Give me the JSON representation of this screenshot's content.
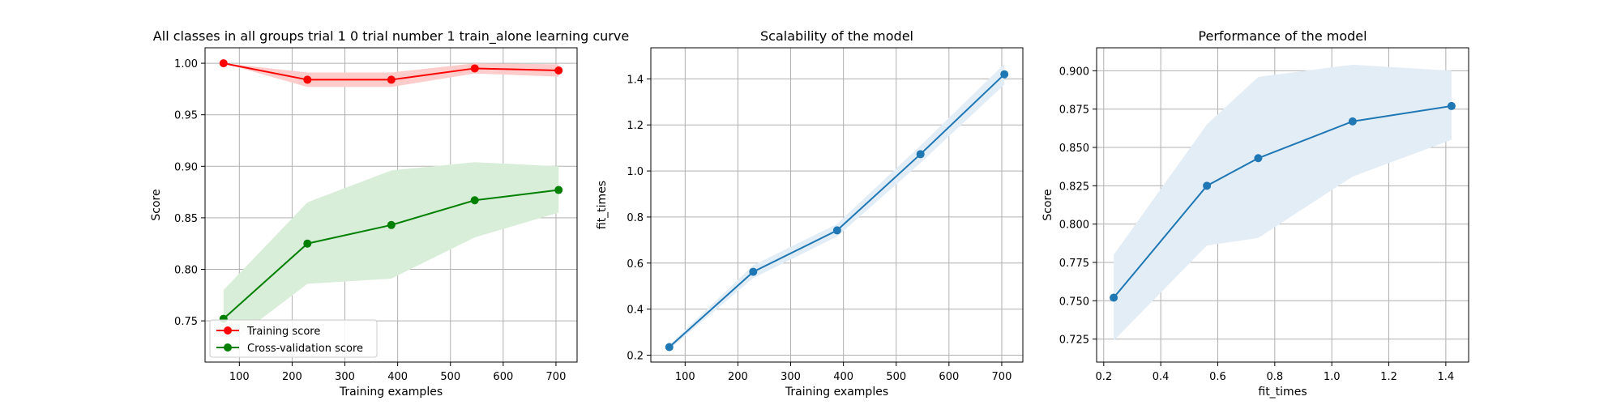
{
  "chart_data": [
    {
      "type": "line",
      "title": "All classes in all groups trial 1 0 trial number 1 train_alone learning curve",
      "xlabel": "Training examples",
      "ylabel": "Score",
      "xlim": [
        35,
        740
      ],
      "ylim": [
        0.71,
        1.015
      ],
      "xticks": [
        100,
        200,
        300,
        400,
        500,
        600,
        700
      ],
      "yticks": [
        0.75,
        0.8,
        0.85,
        0.9,
        0.95,
        1.0
      ],
      "ytick_decimals": 2,
      "grid": true,
      "legend": {
        "position": "lower-left",
        "entries": [
          "Training score",
          "Cross-validation score"
        ]
      },
      "x": [
        70,
        229,
        388,
        546,
        705
      ],
      "series": [
        {
          "name": "Training score",
          "color": "#ff0000",
          "fill": "#ffcccc",
          "values": [
            1.0,
            0.984,
            0.984,
            0.995,
            0.993
          ],
          "lower": [
            1.0,
            0.977,
            0.977,
            0.99,
            0.987
          ],
          "upper": [
            1.0,
            0.991,
            0.991,
            1.0,
            0.999
          ]
        },
        {
          "name": "Cross-validation score",
          "color": "#008000",
          "fill": "#d9eed9",
          "values": [
            0.752,
            0.825,
            0.843,
            0.867,
            0.877
          ],
          "lower": [
            0.724,
            0.786,
            0.791,
            0.831,
            0.855
          ],
          "upper": [
            0.78,
            0.865,
            0.896,
            0.904,
            0.9
          ]
        }
      ]
    },
    {
      "type": "line",
      "title": "Scalability of the model",
      "xlabel": "Training examples",
      "ylabel": "fit_times",
      "xlim": [
        35,
        740
      ],
      "ylim": [
        0.17,
        1.535
      ],
      "xticks": [
        100,
        200,
        300,
        400,
        500,
        600,
        700
      ],
      "yticks": [
        0.2,
        0.4,
        0.6,
        0.8,
        1.0,
        1.2,
        1.4
      ],
      "ytick_decimals": 1,
      "grid": true,
      "x": [
        70,
        229,
        388,
        546,
        705
      ],
      "series": [
        {
          "color": "#1f77b4",
          "fill": "#e3edf6",
          "values": [
            0.235,
            0.562,
            0.742,
            1.073,
            1.42
          ],
          "lower": [
            0.225,
            0.535,
            0.715,
            1.035,
            1.375
          ],
          "upper": [
            0.245,
            0.59,
            0.77,
            1.11,
            1.465
          ]
        }
      ]
    },
    {
      "type": "line",
      "title": "Performance of the model",
      "xlabel": "fit_times",
      "ylabel": "Score",
      "xlim": [
        0.175,
        1.48
      ],
      "ylim": [
        0.71,
        0.915
      ],
      "xticks": [
        0.2,
        0.4,
        0.6,
        0.8,
        1.0,
        1.2,
        1.4
      ],
      "yticks": [
        0.725,
        0.75,
        0.775,
        0.8,
        0.825,
        0.85,
        0.875,
        0.9
      ],
      "xtick_decimals": 1,
      "ytick_decimals": 3,
      "grid": true,
      "x": [
        0.235,
        0.562,
        0.742,
        1.073,
        1.42
      ],
      "series": [
        {
          "color": "#1f77b4",
          "fill": "#e3edf6",
          "values": [
            0.752,
            0.825,
            0.843,
            0.867,
            0.877
          ],
          "lower": [
            0.724,
            0.786,
            0.791,
            0.831,
            0.855
          ],
          "upper": [
            0.78,
            0.865,
            0.896,
            0.904,
            0.9
          ]
        }
      ]
    }
  ]
}
